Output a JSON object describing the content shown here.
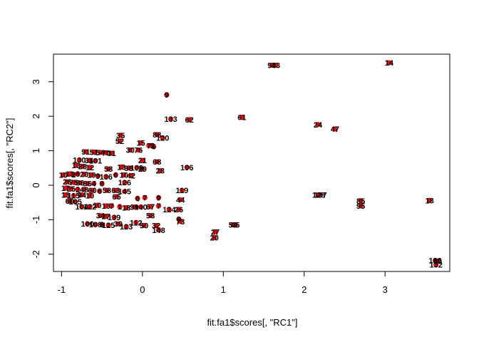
{
  "chart_data": {
    "type": "scatter",
    "title": "",
    "xlabel": "fit.fa1$scores[, \"RC1\"]",
    "ylabel": "fit.fa1$scores[, \"RC2\"]",
    "xlim": [
      -1.1,
      3.8
    ],
    "ylim": [
      -2.5,
      3.8
    ],
    "xticks": [
      -1,
      0,
      1,
      2,
      3
    ],
    "yticks": [
      -2,
      -1,
      0,
      1,
      2,
      3
    ],
    "grid": false,
    "legend": "none",
    "point_color": "#ff0000",
    "points": [
      {
        "x": 3.05,
        "y": 3.55,
        "label": "14"
      },
      {
        "x": 1.6,
        "y": 3.48,
        "label": "93"
      },
      {
        "x": 1.65,
        "y": 3.48,
        "label": "43"
      },
      {
        "x": 0.3,
        "y": 2.62,
        "label": "9"
      },
      {
        "x": 0.35,
        "y": 1.92,
        "label": "133"
      },
      {
        "x": 0.58,
        "y": 1.9,
        "label": "62"
      },
      {
        "x": 1.23,
        "y": 1.97,
        "label": "61"
      },
      {
        "x": 2.17,
        "y": 1.76,
        "label": "24"
      },
      {
        "x": 2.38,
        "y": 1.63,
        "label": "47"
      },
      {
        "x": 0.18,
        "y": 1.47,
        "label": "88"
      },
      {
        "x": 0.25,
        "y": 1.37,
        "label": "120"
      },
      {
        "x": -0.27,
        "y": 1.45,
        "label": "35"
      },
      {
        "x": -0.28,
        "y": 1.28,
        "label": "52"
      },
      {
        "x": -0.02,
        "y": 1.23,
        "label": "15"
      },
      {
        "x": 0.08,
        "y": 1.15,
        "label": "7"
      },
      {
        "x": 0.12,
        "y": 1.15,
        "label": "5"
      },
      {
        "x": 0.14,
        "y": 1.12,
        "label": "6"
      },
      {
        "x": -0.15,
        "y": 1.02,
        "label": "30"
      },
      {
        "x": -0.05,
        "y": 1.02,
        "label": "76"
      },
      {
        "x": -0.7,
        "y": 0.97,
        "label": "91"
      },
      {
        "x": -0.6,
        "y": 0.96,
        "label": "51"
      },
      {
        "x": -0.52,
        "y": 0.95,
        "label": "54"
      },
      {
        "x": -0.45,
        "y": 0.94,
        "label": "70"
      },
      {
        "x": -0.38,
        "y": 0.93,
        "label": "31"
      },
      {
        "x": -0.78,
        "y": 0.73,
        "label": "130"
      },
      {
        "x": -0.66,
        "y": 0.72,
        "label": "33"
      },
      {
        "x": -0.58,
        "y": 0.71,
        "label": "101"
      },
      {
        "x": 0.0,
        "y": 0.72,
        "label": "21"
      },
      {
        "x": 0.18,
        "y": 0.68,
        "label": "68"
      },
      {
        "x": -0.82,
        "y": 0.58,
        "label": "13"
      },
      {
        "x": -0.74,
        "y": 0.55,
        "label": "28"
      },
      {
        "x": -0.65,
        "y": 0.52,
        "label": "12"
      },
      {
        "x": -0.42,
        "y": 0.47,
        "label": "58"
      },
      {
        "x": -0.26,
        "y": 0.53,
        "label": "13"
      },
      {
        "x": -0.17,
        "y": 0.5,
        "label": "98"
      },
      {
        "x": -0.07,
        "y": 0.51,
        "label": "108"
      },
      {
        "x": 0.0,
        "y": 0.47,
        "label": "29"
      },
      {
        "x": 0.22,
        "y": 0.42,
        "label": "28"
      },
      {
        "x": 0.55,
        "y": 0.52,
        "label": "106"
      },
      {
        "x": -0.98,
        "y": 0.3,
        "label": "10"
      },
      {
        "x": -0.9,
        "y": 0.33,
        "label": "13"
      },
      {
        "x": -0.85,
        "y": 0.31,
        "label": "2"
      },
      {
        "x": -0.8,
        "y": 0.33,
        "label": "8"
      },
      {
        "x": -0.72,
        "y": 0.32,
        "label": "20"
      },
      {
        "x": -0.63,
        "y": 0.3,
        "label": "19"
      },
      {
        "x": -0.55,
        "y": 0.27,
        "label": "9"
      },
      {
        "x": -0.45,
        "y": 0.25,
        "label": "136"
      },
      {
        "x": -0.33,
        "y": 0.3,
        "label": "6"
      },
      {
        "x": -0.23,
        "y": 0.3,
        "label": "10"
      },
      {
        "x": -0.14,
        "y": 0.28,
        "label": "42"
      },
      {
        "x": -0.93,
        "y": 0.1,
        "label": "26"
      },
      {
        "x": -0.85,
        "y": 0.08,
        "label": "75"
      },
      {
        "x": -0.77,
        "y": 0.07,
        "label": "86"
      },
      {
        "x": -0.68,
        "y": 0.05,
        "label": "86"
      },
      {
        "x": -0.6,
        "y": 0.05,
        "label": "4"
      },
      {
        "x": -0.5,
        "y": 0.05,
        "label": "8"
      },
      {
        "x": -0.22,
        "y": 0.08,
        "label": "126"
      },
      {
        "x": -0.95,
        "y": -0.08,
        "label": "17"
      },
      {
        "x": -0.88,
        "y": -0.1,
        "label": "25"
      },
      {
        "x": -0.8,
        "y": -0.12,
        "label": "2"
      },
      {
        "x": -0.72,
        "y": -0.12,
        "label": "48"
      },
      {
        "x": -0.62,
        "y": -0.15,
        "label": "60"
      },
      {
        "x": -0.53,
        "y": -0.17,
        "label": "6"
      },
      {
        "x": -0.44,
        "y": -0.15,
        "label": "58"
      },
      {
        "x": -0.33,
        "y": -0.15,
        "label": "63"
      },
      {
        "x": -0.22,
        "y": -0.18,
        "label": "145"
      },
      {
        "x": 0.49,
        "y": -0.15,
        "label": "119"
      },
      {
        "x": -0.95,
        "y": -0.28,
        "label": "13"
      },
      {
        "x": -0.85,
        "y": -0.3,
        "label": "115"
      },
      {
        "x": -0.75,
        "y": -0.28,
        "label": "94"
      },
      {
        "x": -0.65,
        "y": -0.3,
        "label": "10"
      },
      {
        "x": -0.32,
        "y": -0.33,
        "label": "65"
      },
      {
        "x": -0.06,
        "y": -0.38,
        "label": "6"
      },
      {
        "x": 0.03,
        "y": -0.36,
        "label": "7"
      },
      {
        "x": 0.2,
        "y": -0.36,
        "label": "9"
      },
      {
        "x": 0.47,
        "y": -0.42,
        "label": "44"
      },
      {
        "x": -0.9,
        "y": -0.46,
        "label": "60"
      },
      {
        "x": -0.83,
        "y": -0.48,
        "label": "105"
      },
      {
        "x": -0.75,
        "y": -0.62,
        "label": "104"
      },
      {
        "x": -0.65,
        "y": -0.62,
        "label": "122"
      },
      {
        "x": -0.56,
        "y": -0.58,
        "label": "10"
      },
      {
        "x": -0.45,
        "y": -0.6,
        "label": "13"
      },
      {
        "x": -0.38,
        "y": -0.6,
        "label": "7"
      },
      {
        "x": -0.28,
        "y": -0.62,
        "label": "1"
      },
      {
        "x": -0.2,
        "y": -0.65,
        "label": "18"
      },
      {
        "x": -0.1,
        "y": -0.63,
        "label": "99"
      },
      {
        "x": -0.02,
        "y": -0.63,
        "label": "140"
      },
      {
        "x": 0.1,
        "y": -0.62,
        "label": "67"
      },
      {
        "x": 0.2,
        "y": -0.6,
        "label": "7"
      },
      {
        "x": 0.33,
        "y": -0.7,
        "label": "124"
      },
      {
        "x": 0.45,
        "y": -0.7,
        "label": "26"
      },
      {
        "x": -0.52,
        "y": -0.88,
        "label": "34"
      },
      {
        "x": -0.45,
        "y": -0.9,
        "label": "27"
      },
      {
        "x": -0.35,
        "y": -0.93,
        "label": "139"
      },
      {
        "x": 0.1,
        "y": -0.88,
        "label": "58"
      },
      {
        "x": 0.45,
        "y": -0.98,
        "label": "9"
      },
      {
        "x": 0.47,
        "y": -1.05,
        "label": "73"
      },
      {
        "x": -0.68,
        "y": -1.12,
        "label": "100"
      },
      {
        "x": -0.58,
        "y": -1.14,
        "label": "108"
      },
      {
        "x": -0.5,
        "y": -1.14,
        "label": "8"
      },
      {
        "x": -0.42,
        "y": -1.16,
        "label": "125"
      },
      {
        "x": -0.3,
        "y": -1.12,
        "label": "39"
      },
      {
        "x": -0.2,
        "y": -1.2,
        "label": "123"
      },
      {
        "x": -0.08,
        "y": -1.08,
        "label": "112"
      },
      {
        "x": 0.02,
        "y": -1.17,
        "label": "50"
      },
      {
        "x": 0.17,
        "y": -1.17,
        "label": "32"
      },
      {
        "x": 0.2,
        "y": -1.3,
        "label": "148"
      },
      {
        "x": 0.9,
        "y": -1.35,
        "label": "27"
      },
      {
        "x": 0.89,
        "y": -1.52,
        "label": "20"
      },
      {
        "x": 1.12,
        "y": -1.15,
        "label": "58"
      },
      {
        "x": 1.15,
        "y": -1.15,
        "label": "45"
      },
      {
        "x": 2.18,
        "y": -0.28,
        "label": "128"
      },
      {
        "x": 2.2,
        "y": -0.28,
        "label": "137"
      },
      {
        "x": 2.7,
        "y": -0.45,
        "label": "85"
      },
      {
        "x": 2.7,
        "y": -0.6,
        "label": "95"
      },
      {
        "x": 3.55,
        "y": -0.44,
        "label": "18"
      },
      {
        "x": 3.62,
        "y": -2.18,
        "label": "139"
      },
      {
        "x": 3.65,
        "y": -2.2,
        "label": "90"
      },
      {
        "x": 3.63,
        "y": -2.3,
        "label": "132"
      }
    ]
  }
}
